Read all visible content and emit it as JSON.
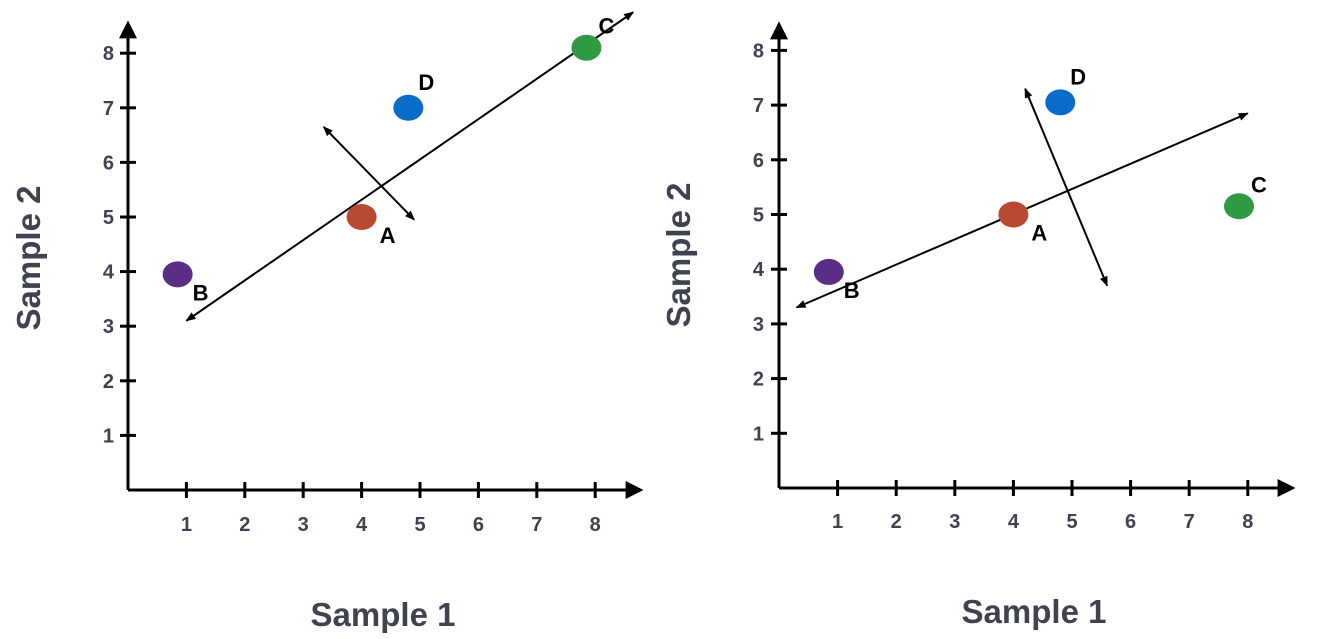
{
  "colors": {
    "axis": "#000000",
    "tick_text": "#3f4350",
    "A": "#b84a33",
    "B": "#5b2d84",
    "C": "#2f9a43",
    "D": "#0a6cc9"
  },
  "chart_data": [
    {
      "type": "scatter",
      "xlabel": "Sample 1",
      "ylabel": "Sample 2",
      "xticks": [
        "1",
        "2",
        "3",
        "4",
        "5",
        "6",
        "7",
        "8"
      ],
      "yticks": [
        "1",
        "2",
        "3",
        "4",
        "5",
        "6",
        "7",
        "8"
      ],
      "xlim": [
        0,
        8.8
      ],
      "ylim": [
        0,
        8.8
      ],
      "grid": false,
      "points": [
        {
          "label": "A",
          "x": 4.0,
          "y": 5.0,
          "color": "#b84a33"
        },
        {
          "label": "B",
          "x": 0.85,
          "y": 3.95,
          "color": "#5b2d84"
        },
        {
          "label": "C",
          "x": 7.85,
          "y": 8.1,
          "color": "#2f9a43"
        },
        {
          "label": "D",
          "x": 4.8,
          "y": 7.0,
          "color": "#0a6cc9"
        }
      ],
      "arrows": [
        {
          "from": [
            1.0,
            3.1
          ],
          "to": [
            8.65,
            8.75
          ]
        },
        {
          "from": [
            3.35,
            6.65
          ],
          "to": [
            4.9,
            4.95
          ]
        }
      ]
    },
    {
      "type": "scatter",
      "xlabel": "Sample 1",
      "ylabel": "Sample 2",
      "xticks": [
        "1",
        "2",
        "3",
        "4",
        "5",
        "6",
        "7",
        "8"
      ],
      "yticks": [
        "1",
        "2",
        "3",
        "4",
        "5",
        "6",
        "7",
        "8"
      ],
      "xlim": [
        0,
        8.8
      ],
      "ylim": [
        0,
        8.8
      ],
      "grid": false,
      "points": [
        {
          "label": "A",
          "x": 4.0,
          "y": 5.0,
          "color": "#b84a33"
        },
        {
          "label": "B",
          "x": 0.85,
          "y": 3.95,
          "color": "#5b2d84"
        },
        {
          "label": "C",
          "x": 7.85,
          "y": 5.15,
          "color": "#2f9a43"
        },
        {
          "label": "D",
          "x": 4.8,
          "y": 7.05,
          "color": "#0a6cc9"
        }
      ],
      "arrows": [
        {
          "from": [
            0.3,
            3.3
          ],
          "to": [
            8.0,
            6.85
          ]
        },
        {
          "from": [
            4.2,
            7.3
          ],
          "to": [
            5.6,
            3.7
          ]
        }
      ]
    }
  ]
}
